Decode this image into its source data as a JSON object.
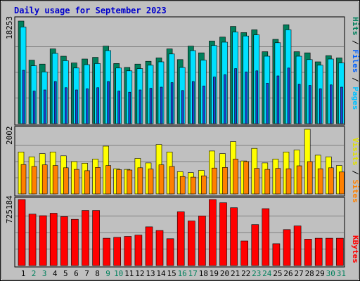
{
  "chart_data": {
    "type": "bar",
    "title": "Daily usage for September 2023",
    "colors": {
      "background": "#c0c0c0",
      "plot_bg": "#c0c0c0",
      "title": "#0000cc",
      "hits": "#00805c",
      "files": "#00e0ff",
      "pages": "#2040d0",
      "visits": "#ffff00",
      "sites": "#ff8000",
      "kbytes": "#ff0000",
      "weekday": "#000000",
      "weekend": "#00805c"
    },
    "days": [
      "1",
      "2",
      "3",
      "4",
      "5",
      "6",
      "7",
      "8",
      "9",
      "10",
      "11",
      "12",
      "13",
      "14",
      "15",
      "16",
      "17",
      "18",
      "19",
      "20",
      "21",
      "22",
      "23",
      "24",
      "25",
      "26",
      "27",
      "28",
      "29",
      "30",
      "31"
    ],
    "weekend_days": [
      "2",
      "3",
      "9",
      "10",
      "16",
      "17",
      "23",
      "24",
      "30",
      "31"
    ],
    "panels": {
      "traffic": {
        "max_label": "18253",
        "max_value": 18253,
        "legend": {
          "pages": "Pages",
          "files": "Files",
          "hits": "Hits",
          "sep": "/"
        },
        "hits": [
          18253,
          11300,
          10600,
          13300,
          12000,
          10800,
          11500,
          11800,
          13800,
          10700,
          10000,
          10600,
          11100,
          11700,
          13300,
          11400,
          13800,
          12600,
          14700,
          15400,
          17300,
          16200,
          16700,
          12800,
          15000,
          17600,
          12800,
          12600,
          11000,
          12100,
          11700
        ],
        "files": [
          17200,
          10300,
          9200,
          12500,
          11200,
          9900,
          10500,
          10700,
          13000,
          9900,
          9400,
          9800,
          10400,
          11000,
          12400,
          10000,
          13000,
          11300,
          13900,
          14500,
          16300,
          15600,
          15800,
          12000,
          14400,
          16700,
          12000,
          11400,
          10400,
          11500,
          10800
        ],
        "pages": [
          9500,
          5800,
          6000,
          7500,
          6400,
          6000,
          6200,
          6400,
          7500,
          5800,
          5600,
          6000,
          6300,
          6500,
          7300,
          5900,
          7500,
          6700,
          8300,
          8700,
          9800,
          9200,
          9400,
          7200,
          8500,
          9900,
          7000,
          6800,
          6200,
          6900,
          6500
        ]
      },
      "visits": {
        "max_label": "2002",
        "max_value": 2002,
        "legend": {
          "sites": "Sites",
          "visits": "Visits",
          "sep": "/"
        },
        "visits": [
          1300,
          1150,
          1250,
          1300,
          1180,
          1000,
          950,
          1080,
          1480,
          780,
          760,
          1100,
          960,
          1530,
          1300,
          690,
          660,
          730,
          1330,
          1250,
          1620,
          1020,
          1410,
          960,
          1080,
          1300,
          1360,
          2002,
          1200,
          1150,
          880
        ],
        "sites": [
          910,
          850,
          900,
          880,
          810,
          760,
          720,
          820,
          880,
          750,
          740,
          810,
          770,
          900,
          850,
          540,
          520,
          560,
          800,
          820,
          1080,
          1000,
          790,
          760,
          790,
          780,
          870,
          1000,
          780,
          810,
          680
        ]
      },
      "kbytes": {
        "max_label": "725184",
        "max_value": 725184,
        "legend": {
          "kbytes": "KBytes"
        },
        "kbytes": [
          725184,
          565000,
          548000,
          575000,
          538000,
          508000,
          605000,
          605000,
          300000,
          310000,
          320000,
          335000,
          425000,
          385000,
          295000,
          590000,
          490000,
          545000,
          725184,
          690000,
          635000,
          270000,
          450000,
          625000,
          240000,
          395000,
          435000,
          290000,
          300000,
          300000,
          300000
        ]
      }
    }
  }
}
